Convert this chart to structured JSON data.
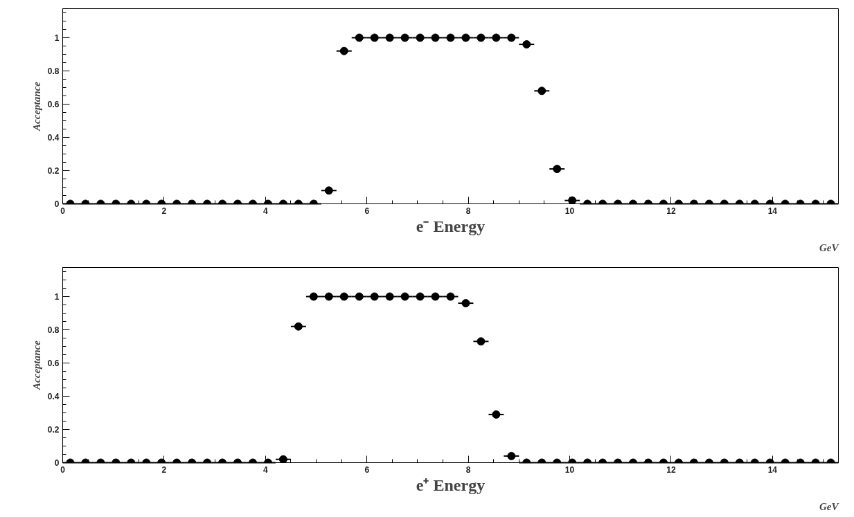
{
  "chart_data": [
    {
      "type": "scatter",
      "xlabel": "e⁻ Energy",
      "ylabel": "Acceptance",
      "annotations": [
        "GeV"
      ],
      "marker": "circle",
      "grid": false,
      "x": [
        0.15,
        0.45,
        0.75,
        1.05,
        1.35,
        1.65,
        1.95,
        2.25,
        2.55,
        2.85,
        3.15,
        3.45,
        3.75,
        4.05,
        4.35,
        4.65,
        4.95,
        5.25,
        5.55,
        5.85,
        6.15,
        6.45,
        6.75,
        7.05,
        7.35,
        7.65,
        7.95,
        8.25,
        8.55,
        8.85,
        9.15,
        9.45,
        9.75,
        10.05,
        10.35,
        10.65,
        10.95,
        11.25,
        11.55,
        11.85,
        12.15,
        12.45,
        12.75,
        13.05,
        13.35,
        13.65,
        13.95,
        14.25,
        14.55,
        14.85,
        15.15
      ],
      "series": [
        {
          "color": "#000000",
          "values": [
            0,
            0,
            0,
            0,
            0,
            0,
            0,
            0,
            0,
            0,
            0,
            0,
            0,
            0,
            0,
            0,
            0,
            0.08,
            0.92,
            1,
            1,
            1,
            1,
            1,
            1,
            1,
            1,
            1,
            1,
            1,
            0.96,
            0.68,
            0.21,
            0.02,
            0,
            0,
            0,
            0,
            0,
            0,
            0,
            0,
            0,
            0,
            0,
            0,
            0,
            0,
            0,
            0,
            0
          ],
          "xerrors": [
            0.15,
            0.15,
            0.15,
            0.15,
            0.15,
            0.15,
            0.15,
            0.15,
            0.15,
            0.15,
            0.15,
            0.15,
            0.15,
            0.15,
            0.15,
            0.15,
            0.15,
            0.15,
            0.15,
            0.15,
            0.15,
            0.15,
            0.15,
            0.15,
            0.15,
            0.15,
            0.15,
            0.15,
            0.15,
            0.15,
            0.15,
            0.15,
            0.15,
            0.15,
            0.15,
            0.15,
            0.15,
            0.15,
            0.15,
            0.15,
            0.15,
            0.15,
            0.15,
            0.15,
            0.15,
            0.15,
            0.15,
            0.15,
            0.15,
            0.15,
            0.15
          ]
        }
      ],
      "xlim": [
        0,
        15.3
      ],
      "ylim": [
        0,
        1.175
      ],
      "xticks": [
        0,
        2,
        4,
        6,
        8,
        10,
        12,
        14
      ],
      "yticks": [
        0,
        0.2,
        0.4,
        0.6,
        0.8,
        1
      ]
    },
    {
      "type": "scatter",
      "xlabel": "e⁺ Energy",
      "ylabel": "Acceptance",
      "annotations": [
        "GeV"
      ],
      "marker": "circle",
      "grid": false,
      "x": [
        0.15,
        0.45,
        0.75,
        1.05,
        1.35,
        1.65,
        1.95,
        2.25,
        2.55,
        2.85,
        3.15,
        3.45,
        3.75,
        4.05,
        4.35,
        4.65,
        4.95,
        5.25,
        5.55,
        5.85,
        6.15,
        6.45,
        6.75,
        7.05,
        7.35,
        7.65,
        7.95,
        8.25,
        8.55,
        8.85,
        9.15,
        9.45,
        9.75,
        10.05,
        10.35,
        10.65,
        10.95,
        11.25,
        11.55,
        11.85,
        12.15,
        12.45,
        12.75,
        13.05,
        13.35,
        13.65,
        13.95,
        14.25,
        14.55,
        14.85,
        15.15
      ],
      "series": [
        {
          "color": "#000000",
          "values": [
            0,
            0,
            0,
            0,
            0,
            0,
            0,
            0,
            0,
            0,
            0,
            0,
            0,
            0,
            0.02,
            0.82,
            1,
            1,
            1,
            1,
            1,
            1,
            1,
            1,
            1,
            1,
            0.96,
            0.73,
            0.29,
            0.04,
            0,
            0,
            0,
            0,
            0,
            0,
            0,
            0,
            0,
            0,
            0,
            0,
            0,
            0,
            0,
            0,
            0,
            0,
            0,
            0,
            0
          ],
          "xerrors": [
            0.15,
            0.15,
            0.15,
            0.15,
            0.15,
            0.15,
            0.15,
            0.15,
            0.15,
            0.15,
            0.15,
            0.15,
            0.15,
            0.15,
            0.15,
            0.15,
            0.15,
            0.15,
            0.15,
            0.15,
            0.15,
            0.15,
            0.15,
            0.15,
            0.15,
            0.15,
            0.15,
            0.15,
            0.15,
            0.15,
            0.15,
            0.15,
            0.15,
            0.15,
            0.15,
            0.15,
            0.15,
            0.15,
            0.15,
            0.15,
            0.15,
            0.15,
            0.15,
            0.15,
            0.15,
            0.15,
            0.15,
            0.15,
            0.15,
            0.15,
            0.15
          ]
        }
      ],
      "xlim": [
        0,
        15.3
      ],
      "ylim": [
        0,
        1.175
      ],
      "xticks": [
        0,
        2,
        4,
        6,
        8,
        10,
        12,
        14
      ],
      "yticks": [
        0,
        0.2,
        0.4,
        0.6,
        0.8,
        1
      ]
    }
  ]
}
